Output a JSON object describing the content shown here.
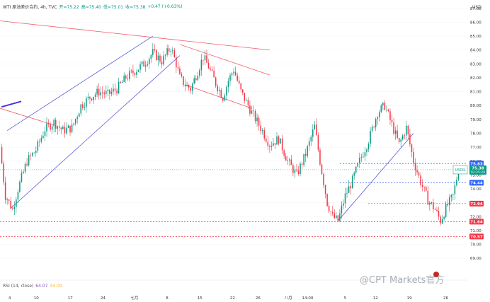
{
  "header": {
    "symbol": "WTI 原油差价合约, 4h, TVC",
    "open": "开=75.22",
    "high": "高=75.40",
    "low": "低=75.01",
    "close": "收=75.38",
    "change": "+0.47 (+0.63%)"
  },
  "rsi": {
    "label": "RSI (14, close)",
    "v1": "64.07",
    "v2": "44.09"
  },
  "watermark": "@CPT Markets官方",
  "colors": {
    "up": "#089981",
    "down": "#f23645",
    "price_tag": "#089981",
    "level_tag": "#f23645",
    "tag_blue": "#2962ff"
  },
  "chart_data": {
    "type": "candlestick",
    "yaxis_unit": "USD",
    "ylim": [
      68.5,
      88
    ],
    "y_ticks": [
      69.0,
      70.0,
      71.0,
      72.0,
      73.0,
      74.0,
      75.0,
      76.0,
      77.0,
      78.0,
      79.0,
      80.0,
      81.0,
      82.0,
      83.0,
      84.0,
      85.0,
      86.0,
      87.0
    ],
    "x_ticks": [
      "4",
      "10",
      "17",
      "24",
      "七月",
      "8",
      "15",
      "22",
      "26",
      "八月",
      "14:00",
      "5",
      "12",
      "19",
      "26"
    ],
    "last_price": 75.38,
    "last_label": "USOIL",
    "countdown": "02:25:20",
    "levels": [
      {
        "value": 75.83,
        "label": "75.83"
      },
      {
        "value": 74.44,
        "label": "74.44"
      },
      {
        "value": 72.94,
        "label": "72.94"
      },
      {
        "value": 71.64,
        "label": "71.64"
      },
      {
        "value": 70.57,
        "label": "70.57"
      }
    ],
    "price_path": [
      [
        0,
        77.0
      ],
      [
        3,
        73.5
      ],
      [
        4,
        73.3
      ],
      [
        7,
        72.5
      ],
      [
        10,
        74.0
      ],
      [
        15,
        76.0
      ],
      [
        20,
        76.8
      ],
      [
        25,
        78.3
      ],
      [
        30,
        78.8
      ],
      [
        35,
        78.2
      ],
      [
        40,
        78.4
      ],
      [
        45,
        80.0
      ],
      [
        50,
        80.6
      ],
      [
        55,
        81.0
      ],
      [
        60,
        80.8
      ],
      [
        65,
        81.2
      ],
      [
        70,
        82.0
      ],
      [
        75,
        82.5
      ],
      [
        80,
        83.0
      ],
      [
        85,
        83.8
      ],
      [
        90,
        83.2
      ],
      [
        95,
        84.2
      ],
      [
        98,
        83.0
      ],
      [
        100,
        82.0
      ],
      [
        103,
        81.5
      ],
      [
        106,
        81.2
      ],
      [
        110,
        82.5
      ],
      [
        113,
        83.5
      ],
      [
        116,
        82.8
      ],
      [
        120,
        81.6
      ],
      [
        124,
        80.6
      ],
      [
        127,
        81.8
      ],
      [
        130,
        82.6
      ],
      [
        134,
        81.0
      ],
      [
        136,
        80.5
      ],
      [
        140,
        79.5
      ],
      [
        145,
        78.4
      ],
      [
        150,
        77.2
      ],
      [
        155,
        77.6
      ],
      [
        160,
        76.0
      ],
      [
        165,
        75.0
      ],
      [
        170,
        76.5
      ],
      [
        175,
        78.5
      ],
      [
        178,
        76.0
      ],
      [
        182,
        73.0
      ],
      [
        185,
        72.0
      ],
      [
        188,
        71.7
      ],
      [
        192,
        73.5
      ],
      [
        196,
        74.6
      ],
      [
        200,
        76.0
      ],
      [
        205,
        77.5
      ],
      [
        210,
        79.5
      ],
      [
        214,
        80.0
      ],
      [
        218,
        78.6
      ],
      [
        222,
        77.2
      ],
      [
        226,
        78.4
      ],
      [
        230,
        76.0
      ],
      [
        234,
        74.5
      ],
      [
        238,
        73.2
      ],
      [
        242,
        72.5
      ],
      [
        245,
        71.7
      ],
      [
        248,
        72.6
      ],
      [
        252,
        73.5
      ],
      [
        255,
        75.38
      ]
    ],
    "trendlines": [
      {
        "kind": "channel-upper",
        "points": [
          [
            4,
            78.2
          ],
          [
            85,
            85.0
          ]
        ]
      },
      {
        "kind": "channel-lower",
        "points": [
          [
            6,
            72.6
          ],
          [
            100,
            83.6
          ]
        ]
      },
      {
        "kind": "resistance",
        "points": [
          [
            0,
            86.1
          ],
          [
            150,
            84.0
          ]
        ]
      },
      {
        "kind": "resistance",
        "points": [
          [
            0,
            79.8
          ],
          [
            30,
            78.6
          ]
        ]
      },
      {
        "kind": "down-channel-upper",
        "points": [
          [
            100,
            84.4
          ],
          [
            150,
            82.2
          ]
        ]
      },
      {
        "kind": "down-channel-lower",
        "points": [
          [
            103,
            81.5
          ],
          [
            140,
            79.8
          ]
        ]
      },
      {
        "kind": "up-line",
        "points": [
          [
            188,
            71.7
          ],
          [
            230,
            78.0
          ]
        ]
      }
    ]
  }
}
